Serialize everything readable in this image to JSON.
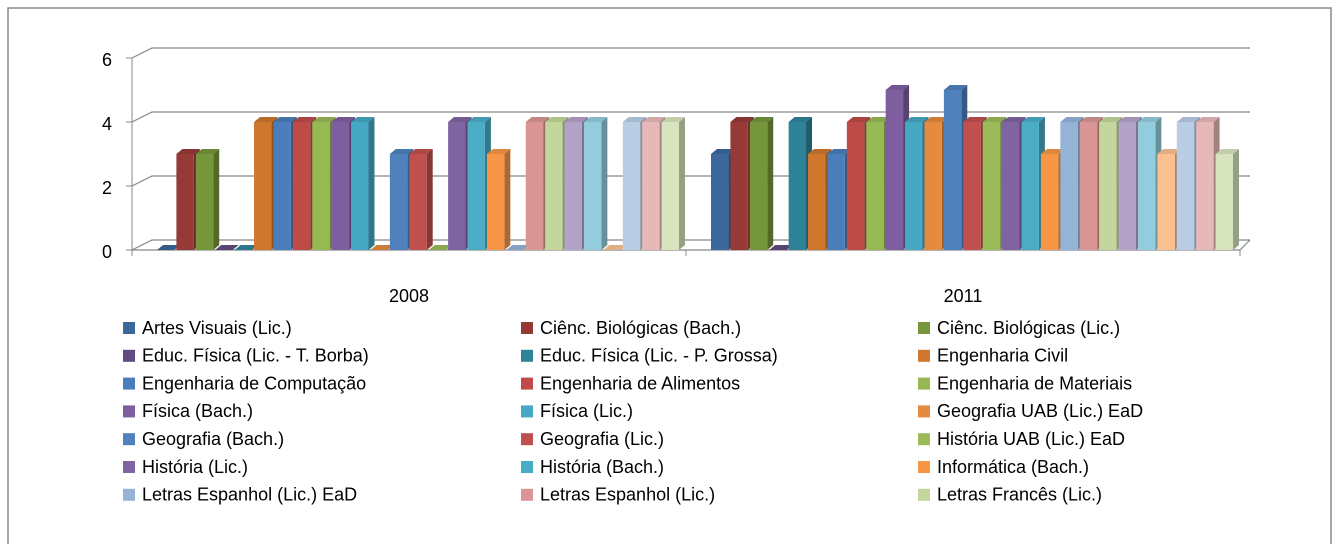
{
  "chart_data": {
    "type": "bar3d",
    "categories": [
      "2008",
      "2011"
    ],
    "ylim": [
      0,
      6
    ],
    "yticks": [
      0,
      2,
      4,
      6
    ],
    "grid": true,
    "series": [
      {
        "name": "Artes Visuais (Lic.)",
        "color": "#3b679c",
        "values": [
          0,
          3
        ]
      },
      {
        "name": "Ciênc. Biológicas (Bach.)",
        "color": "#953a37",
        "values": [
          3,
          4
        ]
      },
      {
        "name": "Ciênc. Biológicas (Lic.)",
        "color": "#76963c",
        "values": [
          3,
          4
        ]
      },
      {
        "name": "Educ. Física (Lic. - T. Borba)",
        "color": "#614b7f",
        "values": [
          0,
          0
        ]
      },
      {
        "name": "Educ. Física (Lic. - P. Grossa)",
        "color": "#2f8399",
        "values": [
          0,
          4
        ]
      },
      {
        "name": "Engenharia Civil",
        "color": "#d0772e",
        "values": [
          4,
          3
        ]
      },
      {
        "name": "Engenharia de Computação",
        "color": "#4a7dbb",
        "values": [
          4,
          3
        ]
      },
      {
        "name": "Engenharia de Alimentos",
        "color": "#be4b48",
        "values": [
          4,
          4
        ]
      },
      {
        "name": "Engenharia de Materiais",
        "color": "#97b954",
        "values": [
          4,
          4
        ]
      },
      {
        "name": "Física (Bach.)",
        "color": "#7d5fa0",
        "values": [
          4,
          5
        ]
      },
      {
        "name": "Física (Lic.)",
        "color": "#46a8c2",
        "values": [
          4,
          4
        ]
      },
      {
        "name": "Geografia UAB (Lic.) EaD",
        "color": "#e58a3f",
        "values": [
          0,
          4
        ]
      },
      {
        "name": "Geografia (Bach.)",
        "color": "#4f81bd",
        "values": [
          3,
          5
        ]
      },
      {
        "name": "Geografia (Lic.)",
        "color": "#c0504d",
        "values": [
          3,
          4
        ]
      },
      {
        "name": "História UAB (Lic.) EaD",
        "color": "#9bbb59",
        "values": [
          0,
          4
        ]
      },
      {
        "name": "História (Lic.)",
        "color": "#8064a2",
        "values": [
          4,
          4
        ]
      },
      {
        "name": "História (Bach.)",
        "color": "#4bacc6",
        "values": [
          4,
          4
        ]
      },
      {
        "name": "Informática (Bach.)",
        "color": "#f79646",
        "values": [
          3,
          3
        ]
      },
      {
        "name": "Letras Espanhol (Lic.) EaD",
        "color": "#95b3d7",
        "values": [
          0,
          4
        ]
      },
      {
        "name": "Letras Espanhol (Lic.)",
        "color": "#d99694",
        "values": [
          4,
          4
        ]
      },
      {
        "name": "Letras Francês (Lic.)",
        "color": "#c3d69b",
        "values": [
          4,
          4
        ]
      },
      {
        "color": "#b3a2c7",
        "values": [
          4,
          4
        ]
      },
      {
        "color": "#93cddd",
        "values": [
          4,
          4
        ]
      },
      {
        "color": "#fac090",
        "values": [
          0,
          3
        ]
      },
      {
        "color": "#b9cde5",
        "values": [
          4,
          4
        ]
      },
      {
        "color": "#e6b9b8",
        "values": [
          4,
          4
        ]
      },
      {
        "color": "#d7e4bd",
        "values": [
          4,
          3
        ]
      }
    ]
  }
}
